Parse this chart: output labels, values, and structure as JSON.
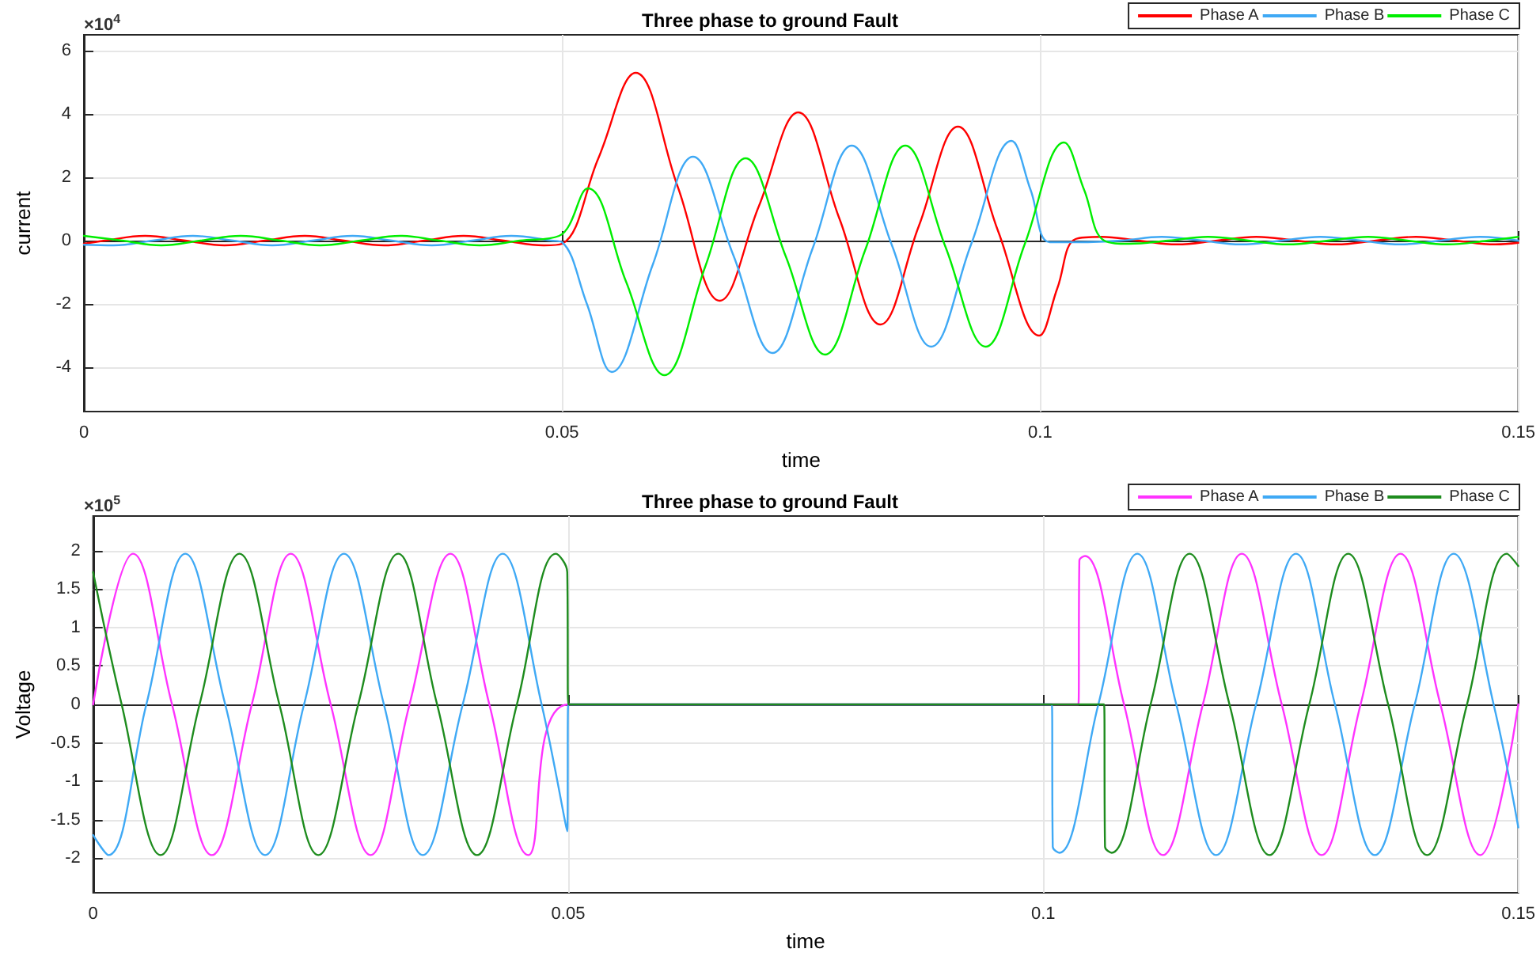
{
  "chart_data": [
    {
      "type": "line",
      "title": "Three phase to ground Fault",
      "xlabel": "time",
      "ylabel": "current",
      "annotations": [
        "×10$^{4}$"
      ],
      "xlim": [
        0,
        0.15
      ],
      "xticks": [
        0,
        0.05,
        0.1,
        0.15
      ],
      "ylim": [
        -5.4,
        6.5
      ],
      "yticks": [
        -4,
        -2,
        0,
        2,
        4,
        6
      ],
      "grid": true,
      "legend": "top right",
      "marker": "none",
      "line_style": "solid",
      "series": [
        {
          "name": "Phase A",
          "color": "#ff0000",
          "x": [
            0,
            0.0022,
            0.0064,
            0.0106,
            0.0147,
            0.0189,
            0.0231,
            0.0272,
            0.0314,
            0.0356,
            0.0397,
            0.0439,
            0.0481,
            0.05,
            0.0538,
            0.0577,
            0.0621,
            0.0665,
            0.0706,
            0.0747,
            0.079,
            0.0833,
            0.0873,
            0.0914,
            0.0956,
            0.0999,
            0.1018,
            0.1037,
            0.1064,
            0.1103,
            0.1143,
            0.1185,
            0.1226,
            0.1268,
            0.131,
            0.1351,
            0.1393,
            0.1434,
            0.1476,
            0.15
          ],
          "values": [
            -0.1,
            0,
            0.15,
            0,
            -0.15,
            0,
            0.15,
            0,
            -0.15,
            0,
            0.15,
            0,
            -0.15,
            -0.1,
            2.6,
            5.3,
            1.7,
            -1.9,
            1.1,
            4.05,
            0.7,
            -2.65,
            0.45,
            3.6,
            0.3,
            -3,
            -1.5,
            0.05,
            0.12,
            0,
            -0.12,
            0,
            0.12,
            0,
            -0.12,
            0,
            0.12,
            0,
            -0.12,
            -0.07
          ]
        },
        {
          "name": "Phase B",
          "color": "#3fa9f5",
          "x": [
            0,
            0.0031,
            0.0072,
            0.0114,
            0.0156,
            0.0197,
            0.0239,
            0.0281,
            0.0322,
            0.0364,
            0.0406,
            0.0447,
            0.0489,
            0.05,
            0.0526,
            0.0552,
            0.0595,
            0.0637,
            0.0679,
            0.072,
            0.0762,
            0.0803,
            0.0845,
            0.0886,
            0.0928,
            0.097,
            0.099,
            0.101,
            0.104,
            0.1085,
            0.1127,
            0.1169,
            0.121,
            0.1252,
            0.1293,
            0.1335,
            0.1377,
            0.1418,
            0.146,
            0.15
          ],
          "values": [
            -0.13,
            -0.15,
            0,
            0.15,
            0,
            -0.15,
            0,
            0.15,
            0,
            -0.15,
            0,
            0.15,
            0,
            -0.05,
            -2,
            -4.15,
            -0.75,
            2.65,
            -0.45,
            -3.55,
            -0.25,
            3,
            -0.15,
            -3.35,
            -0.1,
            3.15,
            1.6,
            -0.05,
            -0.05,
            0,
            0.12,
            0,
            -0.12,
            0,
            0.12,
            0,
            -0.12,
            0,
            0.12,
            0
          ]
        },
        {
          "name": "Phase C",
          "color": "#00ee00",
          "x": [
            0,
            0.004,
            0.0081,
            0.0122,
            0.0164,
            0.0206,
            0.0247,
            0.0289,
            0.0331,
            0.0372,
            0.0414,
            0.0456,
            0.0497,
            0.0527,
            0.0567,
            0.0607,
            0.065,
            0.0692,
            0.0734,
            0.0775,
            0.0817,
            0.0859,
            0.0901,
            0.0943,
            0.0984,
            0.1025,
            0.1046,
            0.1067,
            0.1093,
            0.1134,
            0.1176,
            0.1218,
            0.1259,
            0.1301,
            0.1343,
            0.1384,
            0.1426,
            0.1468,
            0.15
          ],
          "values": [
            0.15,
            0,
            -0.15,
            0,
            0.15,
            0,
            -0.15,
            0,
            0.15,
            0,
            -0.15,
            0,
            0.15,
            1.65,
            -1.3,
            -4.25,
            -0.8,
            2.6,
            -0.5,
            -3.6,
            -0.3,
            3,
            -0.2,
            -3.35,
            -0.1,
            3.1,
            1.6,
            0,
            -0.1,
            0,
            0.12,
            0,
            -0.12,
            0,
            0.12,
            0,
            -0.12,
            0,
            0.12
          ]
        }
      ]
    },
    {
      "type": "line",
      "title": "Three phase to ground Fault",
      "xlabel": "time",
      "ylabel": "Voltage",
      "annotations": [
        "×10$^{5}$"
      ],
      "xlim": [
        0,
        0.15
      ],
      "xticks": [
        0,
        0.05,
        0.1,
        0.15
      ],
      "ylim": [
        -2.45,
        2.45
      ],
      "yticks": [
        -2,
        -1.5,
        -1,
        -0.5,
        0,
        0.5,
        1,
        1.5,
        2
      ],
      "grid": true,
      "legend": "top right",
      "marker": "none",
      "line_style": "solid",
      "series": [
        {
          "name": "Phase A",
          "color": "#ff33ff",
          "x": [
            0,
            0.0042,
            0.0083,
            0.0125,
            0.0167,
            0.0208,
            0.025,
            0.0292,
            0.0333,
            0.0376,
            0.0417,
            0.0458,
            0.05,
            0.1037,
            0.1038,
            0.1044,
            0.1085,
            0.1126,
            0.1168,
            0.1209,
            0.1251,
            0.1293,
            0.1334,
            0.1376,
            0.1418,
            0.146,
            0.15
          ],
          "values": [
            0,
            1.96,
            0,
            -1.96,
            0,
            1.96,
            0,
            -1.96,
            0,
            1.96,
            0,
            -1.96,
            0,
            0,
            1.87,
            1.93,
            0,
            -1.96,
            0,
            1.96,
            0,
            -1.96,
            0,
            1.96,
            0,
            -1.96,
            0
          ]
        },
        {
          "name": "Phase B",
          "color": "#3fa9f5",
          "x": [
            0,
            0.0016,
            0.0056,
            0.0097,
            0.0139,
            0.0181,
            0.0222,
            0.0264,
            0.0306,
            0.0347,
            0.0389,
            0.0431,
            0.0472,
            0.0499,
            0.05,
            0.1009,
            0.101,
            0.1017,
            0.1058,
            0.1099,
            0.114,
            0.1182,
            0.1224,
            0.1266,
            0.1307,
            0.1349,
            0.1391,
            0.1432,
            0.1474,
            0.15
          ],
          "values": [
            -1.7,
            -1.96,
            0,
            1.96,
            0,
            -1.96,
            0,
            1.96,
            0,
            -1.96,
            0,
            1.96,
            0,
            -1.65,
            0,
            0,
            -1.85,
            -1.93,
            0,
            1.96,
            0,
            -1.96,
            0,
            1.96,
            0,
            -1.96,
            0,
            1.96,
            0,
            -1.6
          ]
        },
        {
          "name": "Phase C",
          "color": "#1e8c1e",
          "x": [
            0,
            0.003,
            0.0071,
            0.0112,
            0.0154,
            0.0196,
            0.0237,
            0.0279,
            0.0321,
            0.0362,
            0.0404,
            0.0446,
            0.0487,
            0.0499,
            0.05,
            0.1064,
            0.1065,
            0.1072,
            0.1113,
            0.1154,
            0.1196,
            0.1238,
            0.128,
            0.1321,
            0.1363,
            0.1404,
            0.1446,
            0.1488,
            0.15
          ],
          "values": [
            1.72,
            0,
            -1.96,
            0,
            1.96,
            0,
            -1.96,
            0,
            1.96,
            0,
            -1.96,
            0,
            1.96,
            1.72,
            0,
            0,
            -1.85,
            -1.93,
            0,
            1.96,
            0,
            -1.96,
            0,
            1.96,
            0,
            -1.96,
            0,
            1.96,
            1.8
          ]
        }
      ]
    }
  ]
}
